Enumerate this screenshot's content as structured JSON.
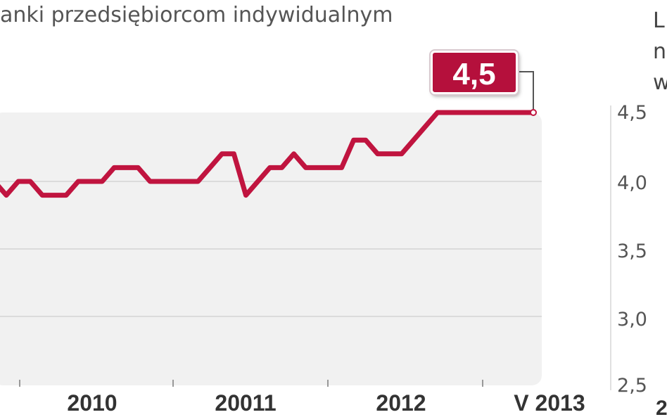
{
  "title": "anki przedsiębiorcom indywidualnym",
  "callout": {
    "value": "4,5"
  },
  "right_panel": {
    "title_fragments": [
      "L",
      "n",
      "w"
    ],
    "ytick_labels": [
      "4,5",
      "4,0",
      "3,5",
      "3,0",
      "2,5"
    ],
    "bottom_fragment": "2"
  },
  "colors": {
    "line": "#c0143f",
    "callout_bg": "#b5103c",
    "plot_bg": "#f1f1f1",
    "grid": "#d4d4d4"
  },
  "chart_data": [
    {
      "type": "line",
      "title": "anki przedsiębiorcom indywidualnym",
      "xlabel": "",
      "ylabel": "",
      "x_tick_labels": [
        "2010",
        "20011",
        "2012",
        "V 2013"
      ],
      "grid": true,
      "series": [
        {
          "values": [
            4.0,
            3.9,
            4.0,
            4.0,
            3.9,
            3.9,
            3.9,
            4.0,
            4.0,
            4.0,
            4.1,
            4.1,
            4.1,
            4.0,
            4.0,
            4.0,
            4.0,
            4.0,
            4.1,
            4.2,
            4.2,
            3.9,
            4.0,
            4.1,
            4.1,
            4.2,
            4.1,
            4.1,
            4.1,
            4.1,
            4.3,
            4.3,
            4.2,
            4.2,
            4.2,
            4.3,
            4.4,
            4.5,
            4.5,
            4.5,
            4.5,
            4.5,
            4.5,
            4.5,
            4.5,
            4.5
          ]
        }
      ],
      "last_value_label": "4,5"
    },
    {
      "type": "line",
      "ylim": [
        2.5,
        4.5
      ],
      "y_tick_labels": [
        "4,5",
        "4,0",
        "3,5",
        "3,0",
        "2,5"
      ],
      "partially_visible": true
    }
  ]
}
